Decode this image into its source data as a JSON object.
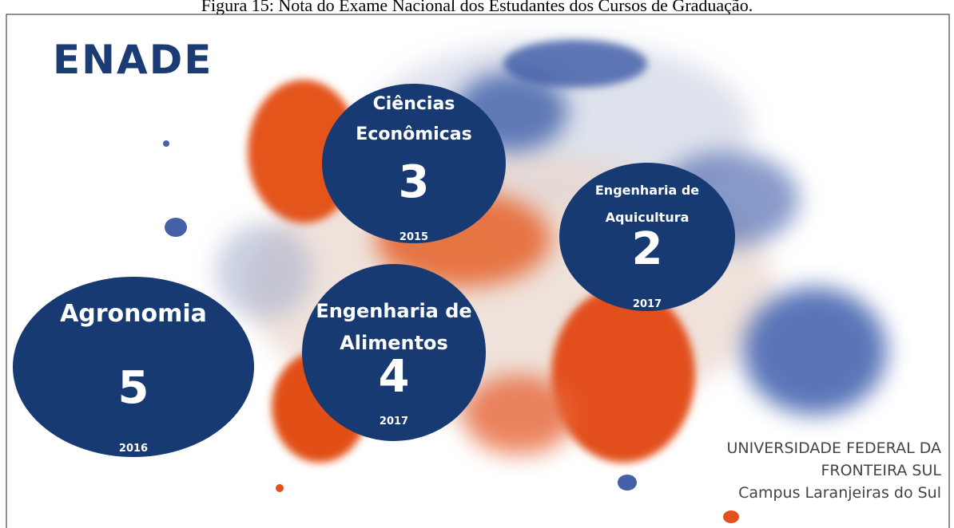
{
  "caption": "Figura 15: Nota do Exame Nacional dos Estudantes dos Cursos de Graduação.",
  "title": "ENADE",
  "courses": [
    {
      "lines": [
        "Ciências",
        "Econômicas"
      ],
      "score": 3,
      "year": 2015
    },
    {
      "lines": [
        "Engenharia de",
        "Aquicultura"
      ],
      "score": 2,
      "year": 2017
    },
    {
      "lines": [
        "Agronomia"
      ],
      "score": 5,
      "year": 2016
    },
    {
      "lines": [
        "Engenharia de",
        "Alimentos"
      ],
      "score": 4,
      "year": 2017
    }
  ],
  "footer": [
    "UNIVERSIDADE FEDERAL DA",
    "FRONTEIRA SUL",
    "Campus Laranjeiras do Sul"
  ]
}
